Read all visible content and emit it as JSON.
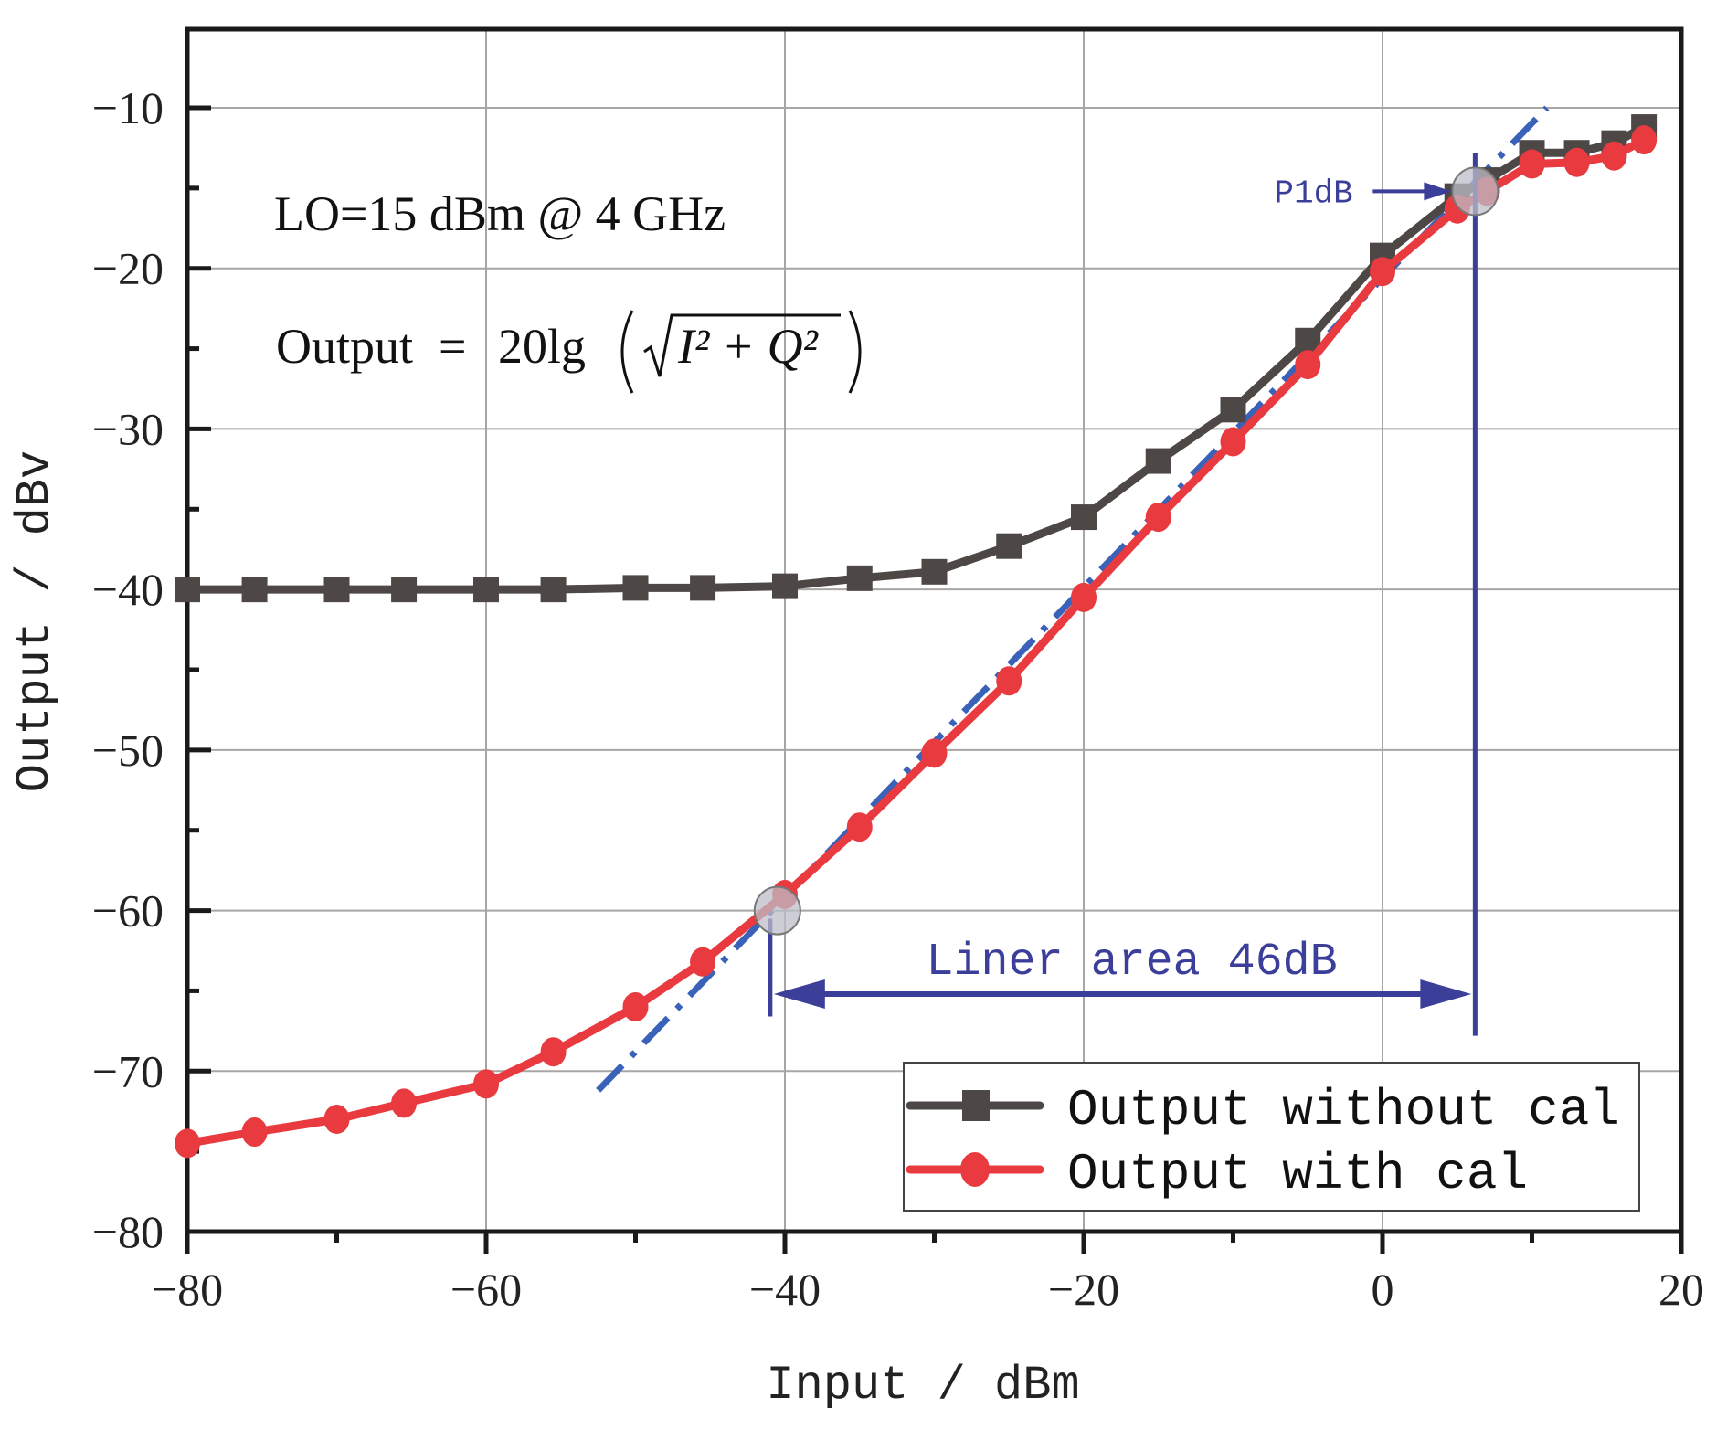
{
  "chart_data": {
    "type": "line",
    "title": "",
    "xlabel": "Input / dBm",
    "ylabel": "Output / dBv",
    "xlim": [
      -80,
      20
    ],
    "ylim": [
      -80,
      -5
    ],
    "xticks": [
      -80,
      -60,
      -40,
      -20,
      0,
      20
    ],
    "xtick_labels": [
      "−80",
      "−60",
      "−40",
      "−20",
      "0",
      "20"
    ],
    "yticks": [
      -10,
      -20,
      -30,
      -40,
      -50,
      -60,
      -70,
      -80
    ],
    "ytick_labels": [
      "−10",
      "−20",
      "−30",
      "−40",
      "−50",
      "−60",
      "−70",
      "−80"
    ],
    "x_minor_ticks": [
      -70,
      -50,
      -30,
      -10,
      10
    ],
    "y_minor_ticks": [
      -15,
      -25,
      -35,
      -45,
      -55,
      -65,
      -75
    ],
    "grid": true,
    "legend_position": "bottom-right",
    "series": [
      {
        "name": "Output without cal",
        "color": "#4d4846",
        "marker": "square",
        "x": [
          -80,
          -75.5,
          -70,
          -65.5,
          -60,
          -55.5,
          -50,
          -45.5,
          -40,
          -35,
          -30,
          -25,
          -20,
          -15,
          -10,
          -5,
          0,
          5,
          7,
          10,
          13,
          15.5,
          17.5
        ],
        "y": [
          -40,
          -40,
          -40,
          -40,
          -40,
          -40,
          -39.9,
          -39.9,
          -39.8,
          -39.3,
          -38.9,
          -37.3,
          -35.5,
          -32,
          -28.8,
          -24.5,
          -19.2,
          -15.5,
          -14.5,
          -12.8,
          -12.8,
          -12.2,
          -11.2
        ]
      },
      {
        "name": "Output with cal",
        "color": "#e83a3f",
        "marker": "circle",
        "x": [
          -80,
          -75.5,
          -70,
          -65.5,
          -60,
          -55.5,
          -50,
          -45.5,
          -40,
          -35,
          -30,
          -25,
          -20,
          -15,
          -10,
          -5,
          0,
          5,
          7,
          10,
          13,
          15.5,
          17.5
        ],
        "y": [
          -74.5,
          -73.8,
          -73,
          -72,
          -70.8,
          -68.8,
          -66,
          -63.2,
          -59,
          -54.8,
          -50.2,
          -45.7,
          -40.5,
          -35.5,
          -30.8,
          -26,
          -20.2,
          -16.3,
          -15.2,
          -13.5,
          -13.4,
          -13.0,
          -12.0
        ]
      }
    ],
    "fit_line": {
      "name": "linear fit",
      "color": "#3a62b8",
      "style": "dash-dot",
      "x": [
        -52.5,
        11
      ],
      "y": [
        -71.2,
        -10
      ]
    },
    "annotations": {
      "lo_text": "LO=15 dBm @ 4 GHz",
      "formula_lhs": "Output",
      "formula_eq": "=",
      "formula_func": "20lg",
      "formula_inner": "I² + Q²",
      "p1db_label": "P1dB",
      "p1db_point": {
        "x": 6.2,
        "y": -15.2
      },
      "low_point": {
        "x": -40.5,
        "y": -60
      },
      "linear_range_label": "Liner area 46dB",
      "linear_range_x": [
        -40.5,
        6.2
      ],
      "linear_range_y": -65.2,
      "annotation_color": "#3b3f9a"
    }
  }
}
